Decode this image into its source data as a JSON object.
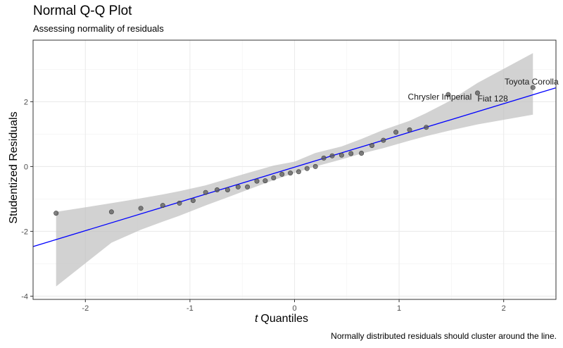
{
  "chart_data": {
    "type": "scatter",
    "title": "Normal Q-Q Plot",
    "subtitle": "Assessing normality of residuals",
    "caption": "Normally distributed residuals should cluster around the line.",
    "xlabel_italic": "t",
    "xlabel": "Quantiles",
    "ylabel": "Studentized Residuals",
    "xlim": [
      -2.5,
      2.5
    ],
    "ylim": [
      -4.1,
      3.9
    ],
    "xticks": [
      -2,
      -1,
      0,
      1,
      2
    ],
    "yticks": [
      -4,
      -2,
      0,
      2
    ],
    "grid": true,
    "x": [
      -2.28,
      -1.75,
      -1.47,
      -1.26,
      -1.1,
      -0.97,
      -0.85,
      -0.74,
      -0.64,
      -0.54,
      -0.45,
      -0.36,
      -0.28,
      -0.2,
      -0.12,
      -0.04,
      0.04,
      0.12,
      0.2,
      0.28,
      0.36,
      0.45,
      0.54,
      0.64,
      0.74,
      0.85,
      0.97,
      1.1,
      1.26,
      1.47,
      1.75,
      2.28
    ],
    "y": [
      -1.44,
      -1.4,
      -1.29,
      -1.2,
      -1.13,
      -1.05,
      -0.8,
      -0.72,
      -0.72,
      -0.63,
      -0.63,
      -0.45,
      -0.44,
      -0.35,
      -0.24,
      -0.2,
      -0.16,
      -0.06,
      0.0,
      0.26,
      0.33,
      0.35,
      0.4,
      0.41,
      0.65,
      0.81,
      1.06,
      1.13,
      1.21,
      2.22,
      2.27,
      2.44
    ],
    "reference_line": {
      "intercept": -0.02,
      "slope": 0.98
    },
    "confidence_band": {
      "x": [
        -2.28,
        -1.75,
        -1.47,
        -1.26,
        -1.1,
        -0.85,
        -0.64,
        -0.45,
        -0.2,
        0.0,
        0.2,
        0.45,
        0.64,
        0.85,
        1.1,
        1.26,
        1.47,
        1.75,
        2.28
      ],
      "lower": [
        -3.7,
        -2.35,
        -1.95,
        -1.7,
        -1.52,
        -1.2,
        -0.95,
        -0.72,
        -0.42,
        -0.2,
        0.0,
        0.22,
        0.4,
        0.57,
        0.8,
        0.94,
        1.1,
        1.3,
        1.6
      ],
      "upper": [
        -1.4,
        -1.13,
        -0.98,
        -0.86,
        -0.76,
        -0.58,
        -0.38,
        -0.2,
        0.03,
        0.15,
        0.42,
        0.62,
        0.85,
        1.13,
        1.41,
        1.65,
        2.0,
        2.58,
        3.5
      ]
    },
    "annotations": [
      {
        "label": "Toyota Corolla",
        "x": 2.28,
        "y": 2.44
      },
      {
        "label": "Chrysler Imperial",
        "x": 1.47,
        "y": 2.22
      },
      {
        "label": "Fiat 128",
        "x": 1.75,
        "y": 2.27
      }
    ]
  }
}
